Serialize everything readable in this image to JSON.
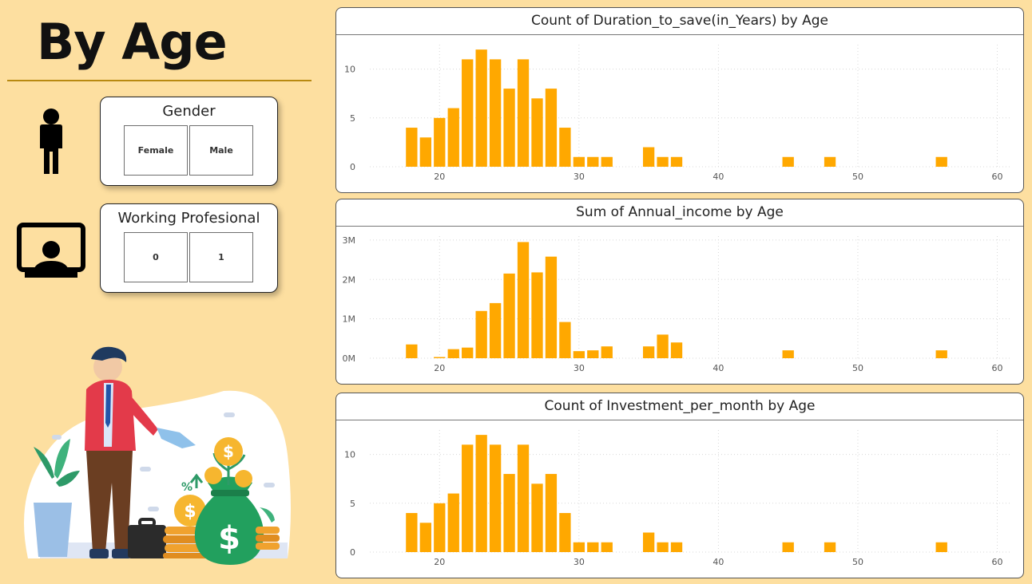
{
  "page": {
    "title": "By Age"
  },
  "slicers": [
    {
      "id": "gender",
      "title": "Gender",
      "options": [
        "Female",
        "Male"
      ],
      "icon": "person-icon"
    },
    {
      "id": "working",
      "title": "Working Profesional",
      "options": [
        "0",
        "1"
      ],
      "icon": "monitor-user-icon"
    }
  ],
  "colors": {
    "bar": "#FFA800",
    "background": "#FDDFA0",
    "accent": "#B88A12"
  },
  "chart_data": [
    {
      "type": "bar",
      "title": "Count of Duration_to_save(in_Years) by Age",
      "xlabel": "",
      "ylabel": "",
      "xlim": [
        15,
        61
      ],
      "ylim": [
        0,
        12.5
      ],
      "xticks": [
        20,
        30,
        40,
        50,
        60
      ],
      "yticks": [
        0,
        5,
        10
      ],
      "ytick_labels": [
        "0",
        "5",
        "10"
      ],
      "x": [
        18,
        19,
        20,
        21,
        22,
        23,
        24,
        25,
        26,
        27,
        28,
        29,
        30,
        31,
        32,
        35,
        36,
        37,
        45,
        48,
        56
      ],
      "values": [
        4,
        3,
        5,
        6,
        11,
        12,
        11,
        8,
        11,
        7,
        8,
        4,
        1,
        1,
        1,
        2,
        1,
        1,
        1,
        1,
        1
      ],
      "grid": true
    },
    {
      "type": "bar",
      "title": "Sum of Annual_income by Age",
      "xlabel": "",
      "ylabel": "",
      "xlim": [
        15,
        61
      ],
      "ylim": [
        0,
        3100000
      ],
      "xticks": [
        20,
        30,
        40,
        50,
        60
      ],
      "yticks": [
        0,
        1000000,
        2000000,
        3000000
      ],
      "ytick_labels": [
        "0M",
        "1M",
        "2M",
        "3M"
      ],
      "x": [
        18,
        20,
        21,
        22,
        23,
        24,
        25,
        26,
        27,
        28,
        29,
        30,
        31,
        32,
        35,
        36,
        37,
        45,
        56
      ],
      "values": [
        350000,
        30000,
        230000,
        270000,
        1200000,
        1400000,
        2150000,
        2950000,
        2180000,
        2580000,
        920000,
        180000,
        200000,
        300000,
        300000,
        600000,
        400000,
        200000,
        200000
      ],
      "grid": true
    },
    {
      "type": "bar",
      "title": "Count of Investment_per_month by Age",
      "xlabel": "",
      "ylabel": "",
      "xlim": [
        15,
        61
      ],
      "ylim": [
        0,
        12.5
      ],
      "xticks": [
        20,
        30,
        40,
        50,
        60
      ],
      "yticks": [
        0,
        5,
        10
      ],
      "ytick_labels": [
        "0",
        "5",
        "10"
      ],
      "x": [
        18,
        19,
        20,
        21,
        22,
        23,
        24,
        25,
        26,
        27,
        28,
        29,
        30,
        31,
        32,
        35,
        36,
        37,
        45,
        48,
        56
      ],
      "values": [
        4,
        3,
        5,
        6,
        11,
        12,
        11,
        8,
        11,
        7,
        8,
        4,
        1,
        1,
        1,
        2,
        1,
        1,
        1,
        1,
        1
      ],
      "grid": true
    }
  ]
}
